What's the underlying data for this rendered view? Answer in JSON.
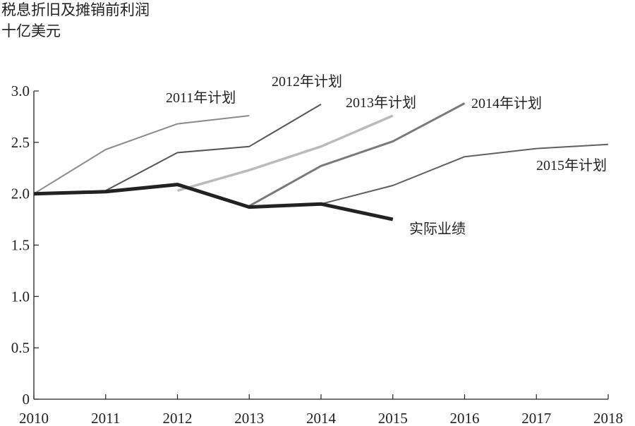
{
  "chart_data": {
    "type": "line",
    "title": "税息折旧及摊销前利润",
    "subtitle": "十亿美元",
    "xlabel": "",
    "ylabel": "",
    "xlim": [
      2010,
      2018
    ],
    "ylim": [
      0,
      3.0
    ],
    "x_ticks": [
      "2010",
      "2011",
      "2012",
      "2013",
      "2014",
      "2015",
      "2016",
      "2017",
      "2018"
    ],
    "y_ticks": [
      "0",
      "0.5",
      "1.0",
      "1.5",
      "2.0",
      "2.5",
      "3.0"
    ],
    "grid": false,
    "series": [
      {
        "name": "2011年计划",
        "color": "#8c8c8c",
        "width": 2,
        "points": [
          [
            2010,
            2.0
          ],
          [
            2011,
            2.43
          ],
          [
            2012,
            2.68
          ],
          [
            2013,
            2.76
          ]
        ]
      },
      {
        "name": "2012年计划",
        "color": "#555555",
        "width": 2,
        "points": [
          [
            2011,
            2.03
          ],
          [
            2012,
            2.4
          ],
          [
            2013,
            2.46
          ],
          [
            2014,
            2.87
          ]
        ]
      },
      {
        "name": "2013年计划",
        "color": "#bbbbbb",
        "width": 3.5,
        "points": [
          [
            2012,
            2.03
          ],
          [
            2013,
            2.23
          ],
          [
            2014,
            2.46
          ],
          [
            2015,
            2.76
          ]
        ]
      },
      {
        "name": "2014年计划",
        "color": "#7a7a7a",
        "width": 3,
        "points": [
          [
            2013,
            1.88
          ],
          [
            2014,
            2.27
          ],
          [
            2015,
            2.51
          ],
          [
            2016,
            2.88
          ]
        ]
      },
      {
        "name": "2015年计划",
        "color": "#606060",
        "width": 2,
        "points": [
          [
            2014,
            1.9
          ],
          [
            2015,
            2.08
          ],
          [
            2016,
            2.36
          ],
          [
            2017,
            2.44
          ],
          [
            2018,
            2.48
          ]
        ]
      },
      {
        "name": "实际业绩",
        "color": "#222222",
        "width": 5,
        "points": [
          [
            2010,
            2.0
          ],
          [
            2011,
            2.02
          ],
          [
            2012,
            2.09
          ],
          [
            2013,
            1.87
          ],
          [
            2014,
            1.9
          ],
          [
            2015,
            1.75
          ]
        ]
      }
    ]
  }
}
